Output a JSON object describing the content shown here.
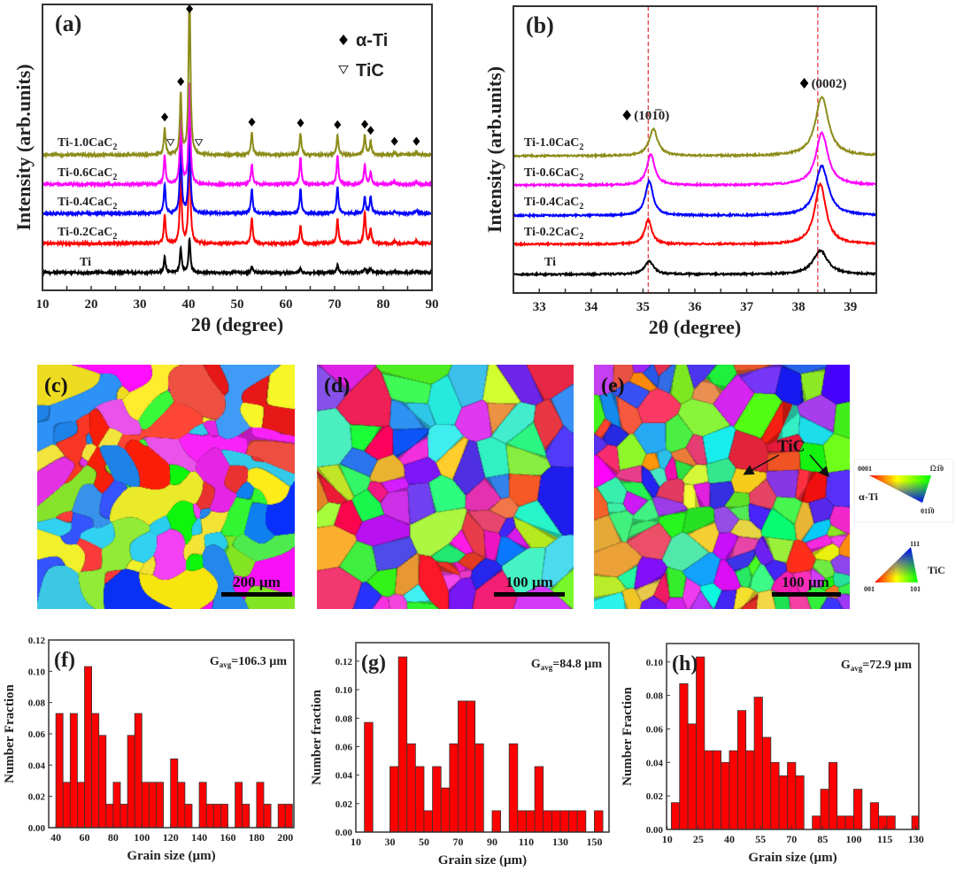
{
  "chart_data": [
    {
      "id": "a",
      "type": "line",
      "panel_label": "(a)",
      "xlabel": "2θ (degree)",
      "ylabel": "Intensity (arb.units)",
      "xlim": [
        10,
        90
      ],
      "xticks": [
        10,
        20,
        30,
        40,
        50,
        60,
        70,
        80,
        90
      ],
      "grid": false,
      "legend": [
        {
          "symbol": "diamond",
          "label": "α-Ti"
        },
        {
          "symbol": "triangle-down-open",
          "label": "TiC"
        }
      ],
      "legend_position": "top-right",
      "series": [
        {
          "name": "Ti",
          "sub": "",
          "color": "#000000",
          "offset": 6.2,
          "peaks": [
            [
              35.1,
              5.3
            ],
            [
              38.4,
              8.4
            ],
            [
              40.2,
              11.8
            ],
            [
              53.0,
              2.2
            ],
            [
              63.0,
              1.3
            ],
            [
              70.6,
              2.6
            ],
            [
              76.2,
              1.6
            ],
            [
              77.4,
              1.5
            ],
            [
              82.3,
              0.4
            ],
            [
              86.8,
              0.5
            ]
          ]
        },
        {
          "name": "Ti-0.2CaC",
          "sub": "2",
          "color": "#ff0000",
          "offset": 16.4,
          "peaks": [
            [
              35.1,
              10
            ],
            [
              38.4,
              25
            ],
            [
              40.2,
              35
            ],
            [
              53.0,
              9
            ],
            [
              63.0,
              6
            ],
            [
              70.6,
              8.5
            ],
            [
              76.2,
              11
            ],
            [
              77.4,
              5
            ],
            [
              82.3,
              1
            ],
            [
              86.8,
              1
            ]
          ]
        },
        {
          "name": "Ti-0.4CaC",
          "sub": "2",
          "color": "#0000ff",
          "offset": 26.9,
          "peaks": [
            [
              35.1,
              10
            ],
            [
              38.4,
              25
            ],
            [
              40.2,
              30
            ],
            [
              53.0,
              8.4
            ],
            [
              63.0,
              8.4
            ],
            [
              70.6,
              9.3
            ],
            [
              76.2,
              5.6
            ],
            [
              77.4,
              5.9
            ],
            [
              82.3,
              0.7
            ],
            [
              86.8,
              1
            ]
          ]
        },
        {
          "name": "Ti-0.6CaC",
          "sub": "2",
          "color": "#ff00ff",
          "offset": 37.1,
          "peaks": [
            [
              35.1,
              10
            ],
            [
              38.4,
              25
            ],
            [
              40.2,
              35
            ],
            [
              53.0,
              7
            ],
            [
              63.0,
              9.3
            ],
            [
              70.6,
              10
            ],
            [
              76.2,
              7
            ],
            [
              77.4,
              4
            ],
            [
              82.3,
              1
            ],
            [
              86.8,
              1
            ]
          ]
        },
        {
          "name": "Ti-1.0CaC",
          "sub": "2",
          "color": "#8c8c1a",
          "offset": 47.4,
          "peaks": [
            [
              35.1,
              9.3
            ],
            [
              38.4,
              21
            ],
            [
              40.2,
              60
            ],
            [
              53.0,
              7.7
            ],
            [
              63.0,
              7.4
            ],
            [
              70.6,
              6.8
            ],
            [
              76.2,
              6.8
            ],
            [
              77.4,
              4.6
            ],
            [
              82.3,
              1
            ],
            [
              86.8,
              1
            ]
          ]
        }
      ],
      "markers": [
        {
          "symbol": "diamond",
          "x": [
            35.1,
            38.4,
            40.2,
            53.0,
            63.0,
            70.6,
            76.2,
            77.4,
            82.3,
            86.8
          ]
        },
        {
          "symbol": "triangle-down-open",
          "x": [
            36.3,
            42.1
          ]
        }
      ]
    },
    {
      "id": "b",
      "type": "line",
      "panel_label": "(b)",
      "xlabel": "2θ (degree)",
      "ylabel": "Intensity (arb.units)",
      "xlim": [
        32.5,
        39.5
      ],
      "xticks": [
        33,
        34,
        35,
        36,
        37,
        38,
        39
      ],
      "grid": false,
      "reference_lines": {
        "x": [
          35.1,
          38.37
        ],
        "color": "#e03030",
        "style": "dashed"
      },
      "annotations": [
        {
          "symbol": "diamond",
          "text": "(101̅0)",
          "x": 35.15
        },
        {
          "symbol": "diamond",
          "text": "(0002)",
          "x": 38.4
        }
      ],
      "series": [
        {
          "name": "Ti",
          "sub": "",
          "color": "#000000",
          "offset": 6.5,
          "peaks": [
            [
              35.12,
              4.6,
              0.1
            ],
            [
              38.42,
              8.3,
              0.17
            ]
          ]
        },
        {
          "name": "Ti-0.2CaC",
          "sub": "2",
          "color": "#ff0000",
          "offset": 17,
          "peaks": [
            [
              35.1,
              8.6,
              0.08
            ],
            [
              38.42,
              21,
              0.13
            ]
          ]
        },
        {
          "name": "Ti-0.4CaC",
          "sub": "2",
          "color": "#0000ff",
          "offset": 27,
          "peaks": [
            [
              35.12,
              12,
              0.09
            ],
            [
              38.45,
              17.3,
              0.15
            ]
          ]
        },
        {
          "name": "Ti-0.6CaC",
          "sub": "2",
          "color": "#ff00ff",
          "offset": 37.6,
          "peaks": [
            [
              35.15,
              10.8,
              0.09
            ],
            [
              38.45,
              18.2,
              0.14
            ]
          ]
        },
        {
          "name": "Ti-1.0CaC",
          "sub": "2",
          "color": "#8c8c1a",
          "offset": 47.8,
          "peaks": [
            [
              35.2,
              9.3,
              0.1
            ],
            [
              38.45,
              20.7,
              0.15
            ]
          ]
        }
      ]
    },
    {
      "id": "f",
      "type": "bar",
      "panel_label": "(f)",
      "annotation": {
        "main": "G",
        "sub": "avg",
        "rest": "=106.3 µm"
      },
      "xlabel": "Grain size (µm)",
      "ylabel": "Number Fraction",
      "xlim": [
        35,
        206
      ],
      "ylim": [
        0,
        0.12
      ],
      "xticks": [
        40,
        60,
        80,
        100,
        120,
        140,
        160,
        180,
        200
      ],
      "yticks": [
        0.0,
        0.02,
        0.04,
        0.06,
        0.08,
        0.1,
        0.12
      ],
      "bar_color": "#ff0000",
      "bin_start": 40,
      "bin_width": 5,
      "values": [
        0.073,
        0.029,
        0.073,
        0.029,
        0.103,
        0.073,
        0.059,
        0.015,
        0.029,
        0.015,
        0.059,
        0.073,
        0.029,
        0.029,
        0.029,
        0,
        0.044,
        0.029,
        0.015,
        0,
        0.029,
        0.015,
        0.015,
        0.015,
        0,
        0.029,
        0.015,
        0,
        0.029,
        0.015,
        0,
        0.015,
        0.015
      ]
    },
    {
      "id": "g",
      "type": "bar",
      "panel_label": "(g)",
      "annotation": {
        "main": "G",
        "sub": "avg",
        "rest": "=84.8 µm"
      },
      "xlabel": "Grain size (µm)",
      "ylabel": "Number fraction",
      "xlim": [
        10,
        158.6
      ],
      "ylim": [
        0,
        0.133
      ],
      "xticks": [
        10,
        30,
        50,
        70,
        90,
        110,
        130,
        150
      ],
      "yticks": [
        0.0,
        0.02,
        0.04,
        0.06,
        0.08,
        0.1,
        0.12
      ],
      "bar_color": "#ff0000",
      "bin_start": 15,
      "bin_width": 5,
      "values": [
        0.077,
        0,
        0,
        0.046,
        0.123,
        0.062,
        0.046,
        0.015,
        0.046,
        0.031,
        0.062,
        0.092,
        0.092,
        0.062,
        0,
        0.015,
        0,
        0.062,
        0.015,
        0.015,
        0.046,
        0.015,
        0.015,
        0.015,
        0.015,
        0.015,
        0,
        0.015
      ]
    },
    {
      "id": "h",
      "type": "bar",
      "panel_label": "(h)",
      "annotation": {
        "main": "G",
        "sub": "avg",
        "rest": "=72.9 µm"
      },
      "xlabel": "Grain size (µm)",
      "ylabel": "Number Fraction",
      "xlim": [
        9.7,
        131.4
      ],
      "ylim": [
        0,
        0.111
      ],
      "xticks": [
        10,
        25,
        40,
        55,
        70,
        85,
        100,
        115,
        130
      ],
      "yticks": [
        0.0,
        0.02,
        0.04,
        0.06,
        0.08,
        0.1
      ],
      "bar_color": "#ff0000",
      "bin_start": 12,
      "bin_width": 4,
      "values": [
        0.016,
        0.087,
        0.063,
        0.103,
        0.047,
        0.047,
        0.04,
        0.047,
        0.071,
        0.047,
        0.079,
        0.055,
        0.04,
        0.032,
        0.04,
        0.032,
        0,
        0.008,
        0.024,
        0.04,
        0.008,
        0.008,
        0.024,
        0,
        0.016,
        0.008,
        0.008,
        0,
        0,
        0.008
      ]
    }
  ],
  "ebsd_maps": [
    {
      "label": "(c)",
      "scale_bar": "200 µm"
    },
    {
      "label": "(d)",
      "scale_bar": "100 µm"
    },
    {
      "label": "(e)",
      "scale_bar": "100 µm",
      "annotation": "TiC"
    }
  ],
  "ipf_legends": [
    {
      "phase": "α-Ti",
      "corners": [
        "0001",
        "1̅21̅0",
        "011̅0"
      ]
    },
    {
      "phase": "TiC",
      "corners": [
        "111",
        "001",
        "101"
      ]
    }
  ]
}
